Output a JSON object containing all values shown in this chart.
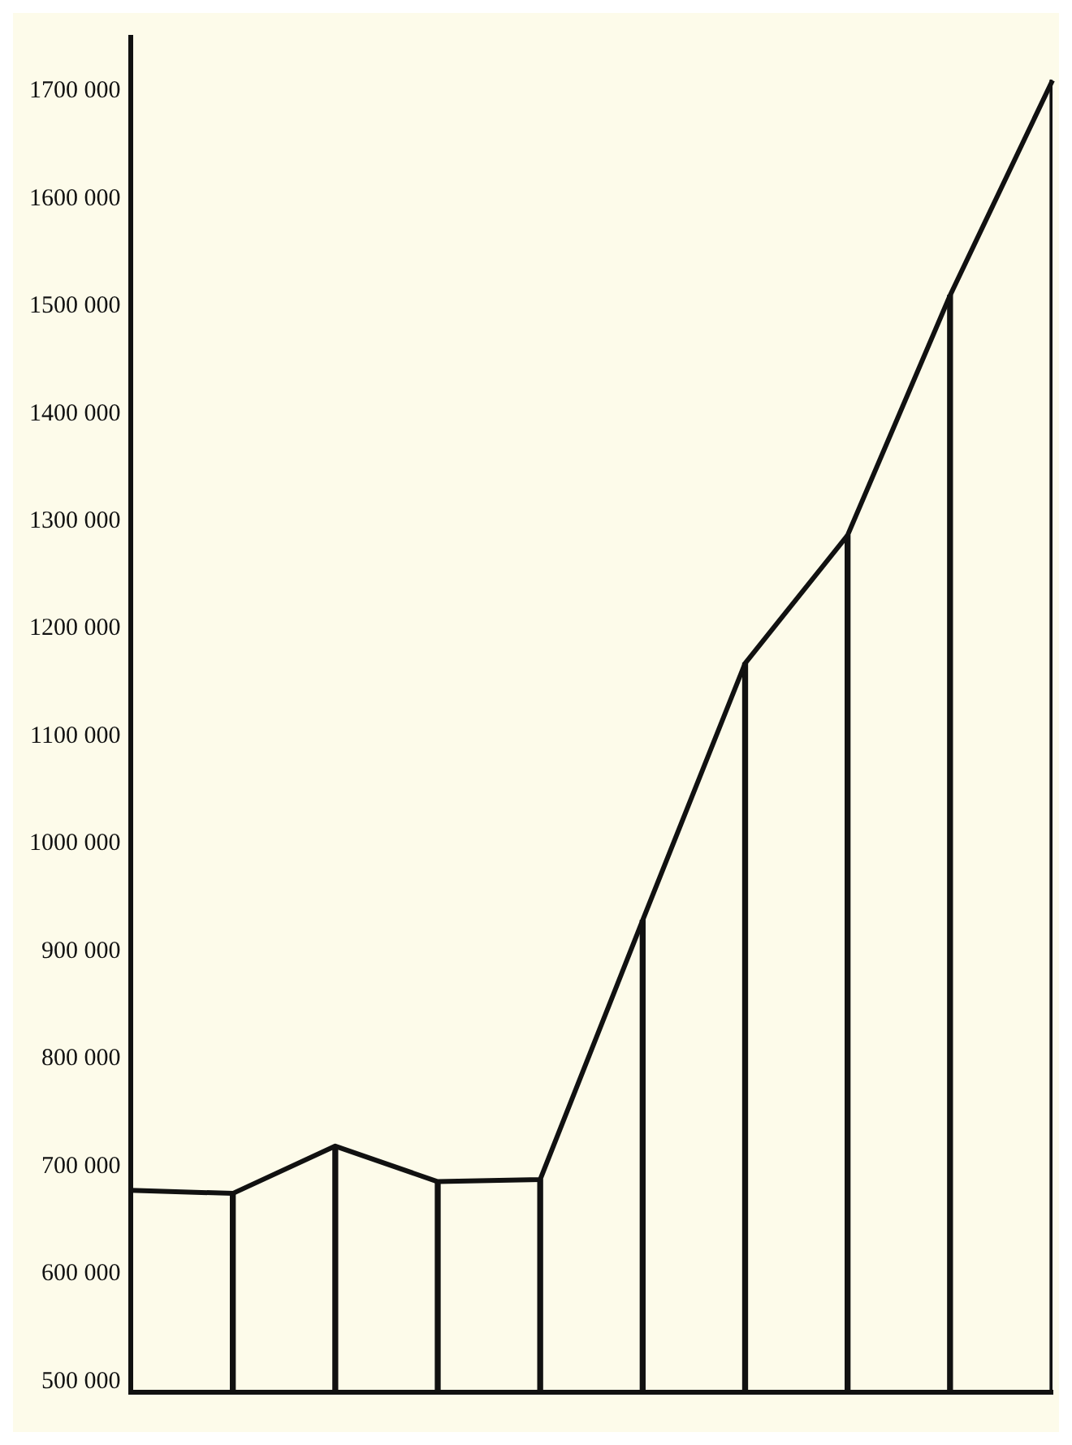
{
  "chart_data": {
    "type": "line",
    "categories": [
      null,
      null,
      null,
      null,
      null,
      null,
      null,
      null,
      null,
      null
    ],
    "series": [
      {
        "color": "#111111",
        "values": [
          678000,
          675000,
          719000,
          686000,
          688000,
          929000,
          1168000,
          1287000,
          1510000,
          1710000
        ]
      },
      {
        "type": "bar",
        "color": "#111111",
        "values": [
          null,
          675000,
          719000,
          686000,
          688000,
          929000,
          1168000,
          1287000,
          1510000,
          1710000
        ]
      }
    ],
    "ylim": [
      490000,
      1750000
    ],
    "yticks": [
      {
        "value": 500000,
        "label": "500 000"
      },
      {
        "value": 600000,
        "label": "600 000"
      },
      {
        "value": 700000,
        "label": "700 000"
      },
      {
        "value": 800000,
        "label": "800 000"
      },
      {
        "value": 900000,
        "label": "900 000"
      },
      {
        "value": 1000000,
        "label": "1000 000"
      },
      {
        "value": 1100000,
        "label": "1100 000"
      },
      {
        "value": 1200000,
        "label": "1200 000"
      },
      {
        "value": 1300000,
        "label": "1300 000"
      },
      {
        "value": 1400000,
        "label": "1400 000"
      },
      {
        "value": 1500000,
        "label": "1500 000"
      },
      {
        "value": 1600000,
        "label": "1600 000"
      },
      {
        "value": 1700000,
        "label": "1700 000"
      }
    ],
    "grid": false,
    "legend": false,
    "marker": "none",
    "line_style": "solid"
  }
}
